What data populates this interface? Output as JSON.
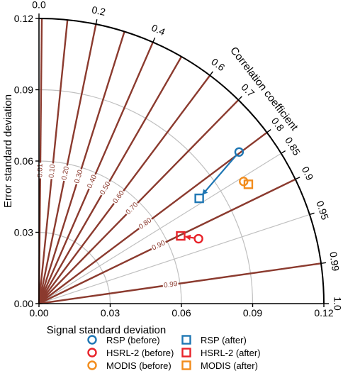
{
  "chart_data": {
    "type": "scatter",
    "subtype": "taylor-diagram",
    "xlabel": "Signal standard deviation",
    "ylabel": "Error standard deviation",
    "arc_label": "Correlation coefficient",
    "xlim": [
      0,
      0.12
    ],
    "ylim": [
      0,
      0.12
    ],
    "x_ticks": [
      "0.00",
      "0.03",
      "0.06",
      "0.09",
      "0.12"
    ],
    "y_ticks": [
      "0.00",
      "0.03",
      "0.06",
      "0.09",
      "0.12"
    ],
    "correlation_ticks": [
      "0.0",
      "0.2",
      "0.4",
      "0.6",
      "0.7",
      "0.8",
      "0.85",
      "0.9",
      "0.95",
      "0.99",
      "1.0"
    ],
    "snr_lines": [
      "0.01",
      "0.10",
      "0.20",
      "0.30",
      "0.40",
      "0.50",
      "0.60",
      "0.70",
      "0.80",
      "0.90",
      "0.99"
    ],
    "colors": {
      "snr_line": "#8b3a2e",
      "grid": "#c0c0c0",
      "rsp": "#1f77b4",
      "hsrl": "#e8232a",
      "modis": "#f28c1c"
    },
    "series": [
      {
        "name": "RSP (before)",
        "marker": "circle",
        "color": "#1f77b4",
        "x": 0.0843,
        "y": 0.0638
      },
      {
        "name": "RSP (after)",
        "marker": "square",
        "color": "#1f77b4",
        "x": 0.0675,
        "y": 0.0443
      },
      {
        "name": "HSRL-2 (before)",
        "marker": "circle",
        "color": "#e8232a",
        "x": 0.0672,
        "y": 0.0273
      },
      {
        "name": "HSRL-2 (after)",
        "marker": "square",
        "color": "#e8232a",
        "x": 0.0597,
        "y": 0.0285
      },
      {
        "name": "MODIS (before)",
        "marker": "circle",
        "color": "#f28c1c",
        "x": 0.0862,
        "y": 0.0514
      },
      {
        "name": "MODIS (after)",
        "marker": "square",
        "color": "#f28c1c",
        "x": 0.0882,
        "y": 0.0502
      }
    ],
    "arrows": [
      {
        "from": "RSP (before)",
        "to": "RSP (after)",
        "color": "#1f77b4"
      },
      {
        "from": "HSRL-2 (before)",
        "to": "HSRL-2 (after)",
        "color": "#e8232a"
      }
    ],
    "legend": {
      "placement": "bottom",
      "entries": [
        "RSP (before)",
        "RSP (after)",
        "HSRL-2 (before)",
        "HSRL-2 (after)",
        "MODIS (before)",
        "MODIS (after)"
      ]
    }
  }
}
